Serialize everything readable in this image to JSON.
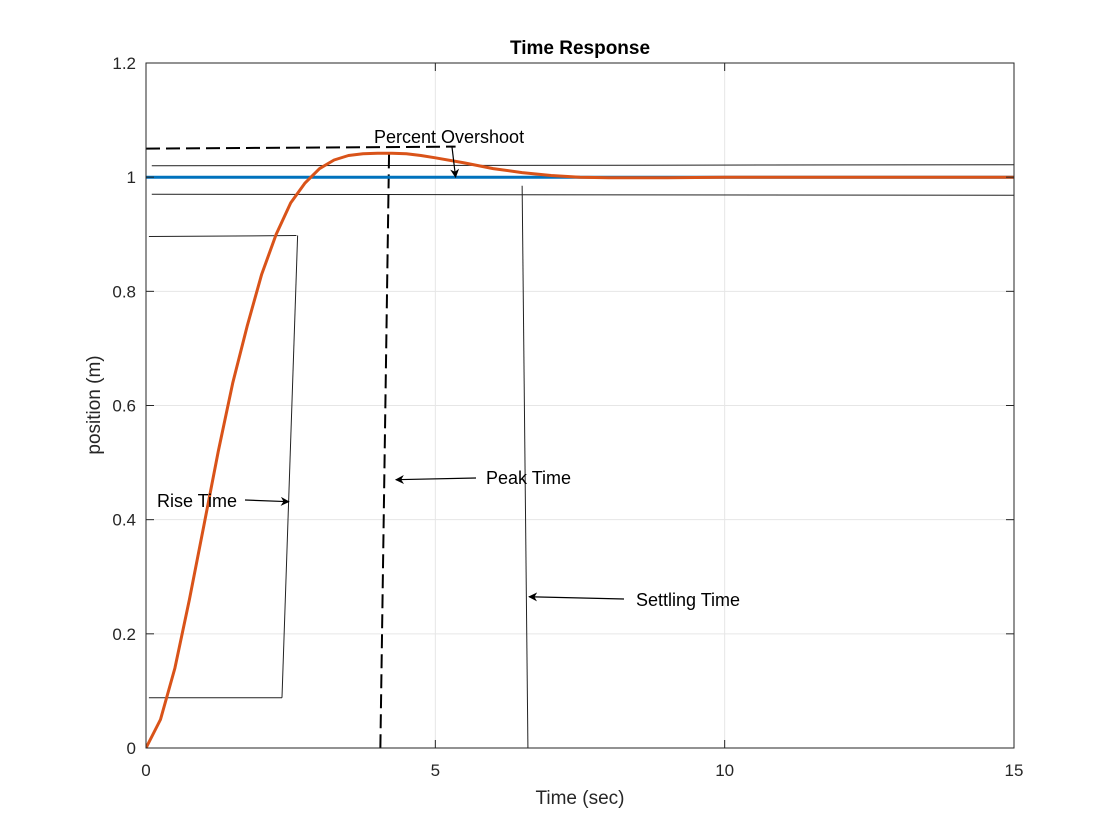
{
  "colors": {
    "background": "#ffffff",
    "axis": "#262626",
    "grid": "#e6e6e6",
    "step_input": "#0072bd",
    "response": "#d95319",
    "annotation": "#000000"
  },
  "chart_data": {
    "type": "line",
    "title": "Time Response",
    "xlabel": "Time (sec)",
    "ylabel": "position (m)",
    "xlim": [
      0,
      15
    ],
    "ylim": [
      0,
      1.2
    ],
    "xticks": [
      0,
      5,
      10,
      15
    ],
    "xtick_labels": [
      "0",
      "5",
      "10",
      "15"
    ],
    "yticks": [
      0,
      0.2,
      0.4,
      0.6,
      0.8,
      1.0,
      1.2
    ],
    "ytick_labels": [
      "0",
      "0.2",
      "0.4",
      "0.6",
      "0.8",
      "1",
      "1.2"
    ],
    "grid": true,
    "series": [
      {
        "role": "step-input",
        "color": "#0072bd",
        "x": [
          0,
          15
        ],
        "y": [
          1,
          1
        ]
      },
      {
        "role": "response",
        "color": "#d95319",
        "x": [
          0,
          0.25,
          0.5,
          0.75,
          1.0,
          1.25,
          1.5,
          1.75,
          2.0,
          2.25,
          2.5,
          2.75,
          3.0,
          3.25,
          3.5,
          3.75,
          4.0,
          4.25,
          4.5,
          4.75,
          5.0,
          5.5,
          6.0,
          6.5,
          7.0,
          7.5,
          8.0,
          9.0,
          10.0,
          11.0,
          12.0,
          13.0,
          14.0,
          15.0
        ],
        "y": [
          0,
          0.05,
          0.14,
          0.26,
          0.39,
          0.52,
          0.64,
          0.74,
          0.83,
          0.9,
          0.955,
          0.99,
          1.015,
          1.03,
          1.038,
          1.041,
          1.042,
          1.042,
          1.041,
          1.038,
          1.034,
          1.025,
          1.015,
          1.008,
          1.003,
          1.0,
          0.999,
          0.999,
          1.0,
          1.0,
          1.0,
          1.0,
          1.0,
          1.0
        ]
      }
    ],
    "annotations": [
      {
        "label": "Percent Overshoot",
        "target": [
          5.35,
          1.0
        ]
      },
      {
        "label": "Rise Time",
        "target": [
          2.4,
          0.435
        ]
      },
      {
        "label": "Peak Time",
        "target": [
          4.3,
          0.47
        ]
      },
      {
        "label": "Settling Time",
        "target": [
          6.55,
          0.265
        ]
      }
    ],
    "reference_lines": {
      "settling_band": [
        0.97,
        1.02
      ],
      "rise_time_low": 0.088,
      "rise_time_high": 0.896,
      "peak_level": 1.05,
      "peak_time": 4.1,
      "settling_time": 6.6
    }
  }
}
